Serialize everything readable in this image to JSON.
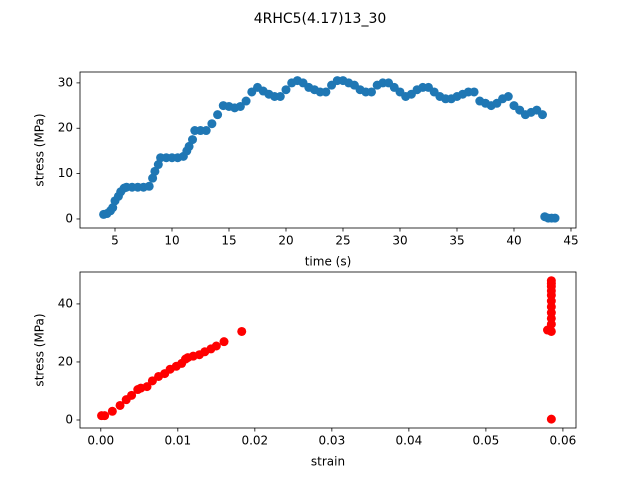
{
  "title": "4RHC5(4.17)13_30",
  "chart_data": [
    {
      "type": "scatter",
      "xlabel": "time (s)",
      "ylabel": "stress (MPa)",
      "color": "#1f77b4",
      "x": [
        4,
        4.3,
        4.6,
        4.8,
        5,
        5.3,
        5.5,
        5.8,
        6,
        6.5,
        7,
        7.5,
        8,
        8.3,
        8.5,
        8.8,
        9,
        9.5,
        10,
        10.5,
        11,
        11.3,
        11.5,
        11.8,
        12,
        12.5,
        13,
        13.5,
        14,
        14.5,
        15,
        15.5,
        16,
        16.5,
        17,
        17.5,
        18,
        18.5,
        19,
        19.5,
        20,
        20.5,
        21,
        21.5,
        22,
        22.5,
        23,
        23.5,
        24,
        24.5,
        25,
        25.5,
        26,
        26.5,
        27,
        27.5,
        28,
        28.5,
        29,
        29.5,
        30,
        30.5,
        31,
        31.5,
        32,
        32.5,
        33,
        33.5,
        34,
        34.5,
        35,
        35.5,
        36,
        36.5,
        37,
        37.5,
        38,
        38.5,
        39,
        39.5,
        40,
        40.5,
        41,
        41.5,
        42,
        42.5,
        42.7,
        43,
        43.3,
        43.6
      ],
      "values": [
        1,
        1.2,
        1.8,
        2.5,
        4,
        5,
        6,
        6.8,
        7,
        7,
        7,
        7,
        7.2,
        9,
        10.5,
        12,
        13.5,
        13.5,
        13.5,
        13.5,
        13.8,
        15,
        16,
        17.5,
        19.5,
        19.5,
        19.5,
        21,
        23,
        25,
        24.8,
        24.5,
        24.8,
        26,
        28,
        29,
        28.2,
        27.5,
        27,
        27,
        28.5,
        30,
        30.5,
        30,
        29,
        28.5,
        28,
        28,
        29.5,
        30.5,
        30.5,
        30,
        29.5,
        28.5,
        28,
        28,
        29.5,
        30,
        30,
        29,
        28,
        27,
        27.5,
        28.5,
        29,
        29,
        28,
        27,
        26.5,
        26.5,
        27,
        27.5,
        28,
        28,
        26,
        25.5,
        25,
        25.5,
        26.5,
        27,
        25,
        24,
        23,
        23.5,
        24,
        23,
        0.5,
        0.2,
        0.2,
        0.2
      ],
      "xlim": [
        1.93,
        45.44
      ],
      "ylim": [
        -1.99,
        32.4
      ],
      "xticks": [
        5,
        10,
        15,
        20,
        25,
        30,
        35,
        40,
        45
      ],
      "yticks": [
        0,
        10,
        20,
        30
      ]
    },
    {
      "type": "scatter",
      "xlabel": "strain",
      "ylabel": "stress (MPa)",
      "color": "#ff0000",
      "x": [
        0.0001,
        0.0005,
        0.0015,
        0.0025,
        0.0033,
        0.004,
        0.0048,
        0.0052,
        0.006,
        0.0067,
        0.0075,
        0.0083,
        0.009,
        0.0098,
        0.0105,
        0.011,
        0.0113,
        0.012,
        0.0128,
        0.0135,
        0.0143,
        0.015,
        0.016,
        0.0183,
        0.058,
        0.0585,
        0.0585,
        0.0585,
        0.0585,
        0.0585,
        0.0585,
        0.0585,
        0.0585,
        0.0585,
        0.0585,
        0.0585,
        0.0585
      ],
      "values": [
        1.5,
        1.5,
        3,
        5,
        7,
        8.5,
        10.5,
        11,
        11.5,
        13.5,
        15,
        16,
        17.5,
        18.5,
        19.5,
        21,
        21.5,
        22,
        22.5,
        23.5,
        24.5,
        25.5,
        27,
        30.5,
        31,
        0.3,
        30.5,
        33,
        35,
        37,
        39,
        41,
        43,
        44.5,
        46,
        47,
        48
      ],
      "xlim": [
        -0.0027,
        0.0617
      ],
      "ylim": [
        -2.76,
        51
      ],
      "xticks": [
        {
          "value": 0,
          "label": "0.00"
        },
        0.01,
        0.02,
        0.03,
        0.04,
        0.05,
        0.06
      ],
      "yticks": [
        0,
        20,
        40
      ]
    }
  ]
}
